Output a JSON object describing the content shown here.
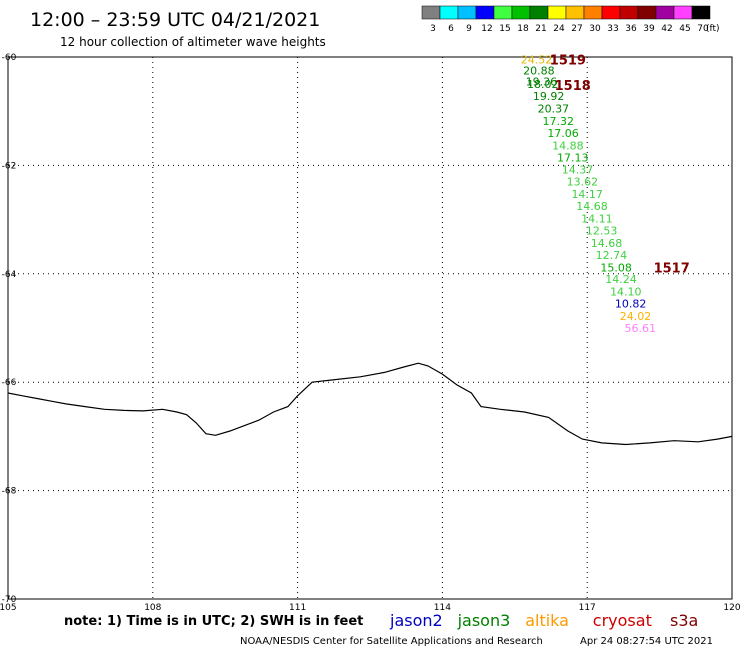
{
  "header": {
    "title": "12:00 – 23:59 UTC 04/21/2021",
    "subtitle": "12 hour collection of altimeter wave heights"
  },
  "legend": {
    "unit": "(ft)",
    "bins": [
      {
        "label": "3",
        "color": "#808080"
      },
      {
        "label": "6",
        "color": "#00ffff"
      },
      {
        "label": "9",
        "color": "#00c0ff"
      },
      {
        "label": "12",
        "color": "#0000ff"
      },
      {
        "label": "15",
        "color": "#40ff40"
      },
      {
        "label": "18",
        "color": "#00c000"
      },
      {
        "label": "21",
        "color": "#008000"
      },
      {
        "label": "24",
        "color": "#ffff00"
      },
      {
        "label": "27",
        "color": "#ffc000"
      },
      {
        "label": "30",
        "color": "#ff8000"
      },
      {
        "label": "33",
        "color": "#ff0000"
      },
      {
        "label": "36",
        "color": "#c00000"
      },
      {
        "label": "39",
        "color": "#800000"
      },
      {
        "label": "42",
        "color": "#a000a0"
      },
      {
        "label": "45",
        "color": "#ff40ff"
      },
      {
        "label": "70",
        "color": "#000000"
      }
    ]
  },
  "footer": {
    "note": "note: 1) Time is in UTC; 2) SWH is in feet",
    "credit": "NOAA/NESDIS Center for Satellite Applications and Research",
    "timestamp": "Apr 24 08:27:54 UTC 2021",
    "satellites": [
      {
        "name": "jason2",
        "color": "#0000c0"
      },
      {
        "name": "jason3",
        "color": "#008000"
      },
      {
        "name": "altika",
        "color": "#ff9900"
      },
      {
        "name": "cryosat",
        "color": "#cc0000"
      },
      {
        "name": "s3a",
        "color": "#800000"
      }
    ]
  },
  "chart_data": {
    "type": "scatter",
    "xlim": [
      105,
      120
    ],
    "ylim": [
      -70,
      -60
    ],
    "x_ticks": [
      {
        "value": 105,
        "label": "105"
      },
      {
        "value": 108,
        "label": "108"
      },
      {
        "value": 111,
        "label": "111"
      },
      {
        "value": 114,
        "label": "114"
      },
      {
        "value": 117,
        "label": "117"
      },
      {
        "value": 120,
        "label": "120"
      }
    ],
    "y_ticks": [
      {
        "value": -60,
        "label": "-60"
      },
      {
        "value": -62,
        "label": "-62"
      },
      {
        "value": -64,
        "label": "-64"
      },
      {
        "value": -66,
        "label": "-66"
      },
      {
        "value": -68,
        "label": "-68"
      },
      {
        "value": -70,
        "label": "-70"
      }
    ],
    "grid": true,
    "points": [
      {
        "lon": 115.95,
        "lat": -60.05,
        "label": "24.52",
        "color": "#e6b800"
      },
      {
        "lon": 116.0,
        "lat": -60.25,
        "label": "20.88",
        "color": "#008000"
      },
      {
        "lon": 116.05,
        "lat": -60.45,
        "label": "19.36",
        "color": "#008000"
      },
      {
        "lon": 116.08,
        "lat": -60.5,
        "label": "18.02",
        "color": "#008000"
      },
      {
        "lon": 116.2,
        "lat": -60.72,
        "label": "19.92",
        "color": "#008000"
      },
      {
        "lon": 116.3,
        "lat": -60.95,
        "label": "20.37",
        "color": "#008000"
      },
      {
        "lon": 116.4,
        "lat": -61.18,
        "label": "17.32",
        "color": "#00aa00"
      },
      {
        "lon": 116.5,
        "lat": -61.4,
        "label": "17.06",
        "color": "#00aa00"
      },
      {
        "lon": 116.6,
        "lat": -61.63,
        "label": "14.88",
        "color": "#40d040"
      },
      {
        "lon": 116.7,
        "lat": -61.85,
        "label": "17.13",
        "color": "#00aa00"
      },
      {
        "lon": 116.8,
        "lat": -62.08,
        "label": "14.37",
        "color": "#40d040"
      },
      {
        "lon": 116.9,
        "lat": -62.3,
        "label": "13.62",
        "color": "#40d040"
      },
      {
        "lon": 117.0,
        "lat": -62.53,
        "label": "14.17",
        "color": "#40d040"
      },
      {
        "lon": 117.1,
        "lat": -62.75,
        "label": "14.68",
        "color": "#40d040"
      },
      {
        "lon": 117.2,
        "lat": -62.98,
        "label": "14.11",
        "color": "#40d040"
      },
      {
        "lon": 117.3,
        "lat": -63.2,
        "label": "12.53",
        "color": "#40d040"
      },
      {
        "lon": 117.4,
        "lat": -63.43,
        "label": "14.68",
        "color": "#40d040"
      },
      {
        "lon": 117.5,
        "lat": -63.65,
        "label": "12.74",
        "color": "#40d040"
      },
      {
        "lon": 117.6,
        "lat": -63.88,
        "label": "15.08",
        "color": "#00aa00"
      },
      {
        "lon": 117.7,
        "lat": -64.1,
        "label": "14.24",
        "color": "#40d040"
      },
      {
        "lon": 117.8,
        "lat": -64.33,
        "label": "14.10",
        "color": "#40d040"
      },
      {
        "lon": 117.9,
        "lat": -64.55,
        "label": "10.82",
        "color": "#0000c0"
      },
      {
        "lon": 118.0,
        "lat": -64.78,
        "label": "24.02",
        "color": "#ffb000"
      },
      {
        "lon": 118.1,
        "lat": -65.0,
        "label": "56.61",
        "color": "#ff80ff"
      }
    ],
    "annotations": [
      {
        "lon": 116.6,
        "lat": -60.05,
        "label": "1519",
        "color": "#800000"
      },
      {
        "lon": 116.7,
        "lat": -60.52,
        "label": "1518",
        "color": "#800000"
      },
      {
        "lon": 118.75,
        "lat": -63.88,
        "label": "1517",
        "color": "#800000"
      }
    ],
    "coastline": [
      [
        105,
        -66.2
      ],
      [
        105.3,
        -66.25
      ],
      [
        105.6,
        -66.3
      ],
      [
        105.9,
        -66.35
      ],
      [
        106.2,
        -66.4
      ],
      [
        106.6,
        -66.45
      ],
      [
        107.0,
        -66.5
      ],
      [
        107.4,
        -66.52
      ],
      [
        107.8,
        -66.53
      ],
      [
        108.2,
        -66.5
      ],
      [
        108.5,
        -66.55
      ],
      [
        108.7,
        -66.6
      ],
      [
        108.9,
        -66.75
      ],
      [
        109.1,
        -66.95
      ],
      [
        109.3,
        -66.98
      ],
      [
        109.6,
        -66.9
      ],
      [
        109.9,
        -66.8
      ],
      [
        110.2,
        -66.7
      ],
      [
        110.5,
        -66.55
      ],
      [
        110.8,
        -66.45
      ],
      [
        111.0,
        -66.25
      ],
      [
        111.3,
        -66.0
      ],
      [
        111.8,
        -65.95
      ],
      [
        112.3,
        -65.9
      ],
      [
        112.8,
        -65.82
      ],
      [
        113.2,
        -65.72
      ],
      [
        113.5,
        -65.65
      ],
      [
        113.7,
        -65.7
      ],
      [
        114.0,
        -65.85
      ],
      [
        114.3,
        -66.05
      ],
      [
        114.6,
        -66.2
      ],
      [
        114.8,
        -66.45
      ],
      [
        115.2,
        -66.5
      ],
      [
        115.7,
        -66.55
      ],
      [
        116.2,
        -66.65
      ],
      [
        116.6,
        -66.9
      ],
      [
        116.9,
        -67.05
      ],
      [
        117.3,
        -67.12
      ],
      [
        117.8,
        -67.15
      ],
      [
        118.3,
        -67.12
      ],
      [
        118.8,
        -67.08
      ],
      [
        119.3,
        -67.1
      ],
      [
        119.7,
        -67.05
      ],
      [
        120.0,
        -67.0
      ]
    ]
  }
}
